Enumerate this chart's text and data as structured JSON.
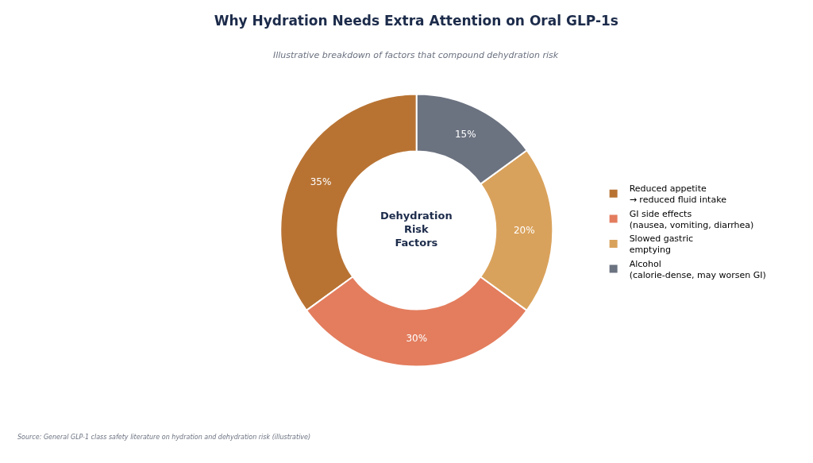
{
  "chart_data": {
    "type": "donut",
    "title": "Why Hydration Needs Extra Attention on Oral GLP-1s",
    "subtitle": "Illustrative breakdown of factors that compound dehydration risk",
    "categories": [
      "Reduced appetite\n→ reduced fluid intake",
      "GI side effects\n(nausea, vomiting, diarrhea)",
      "Slowed gastric\nemptying",
      "Alcohol\n(calorie-dense, may worsen GI)"
    ],
    "values": [
      35,
      30,
      20,
      15
    ],
    "colors": [
      "#b87333",
      "#e37d5e",
      "#d9a25c",
      "#6b7280"
    ],
    "value_labels": [
      "35%",
      "30%",
      "20%",
      "15%"
    ],
    "legend": "right",
    "annotations": [
      "Dehydration\nRisk\nFactors",
      "Source: General GLP-1 class safety literature on hydration and dehydration risk (illustrative)"
    ]
  }
}
